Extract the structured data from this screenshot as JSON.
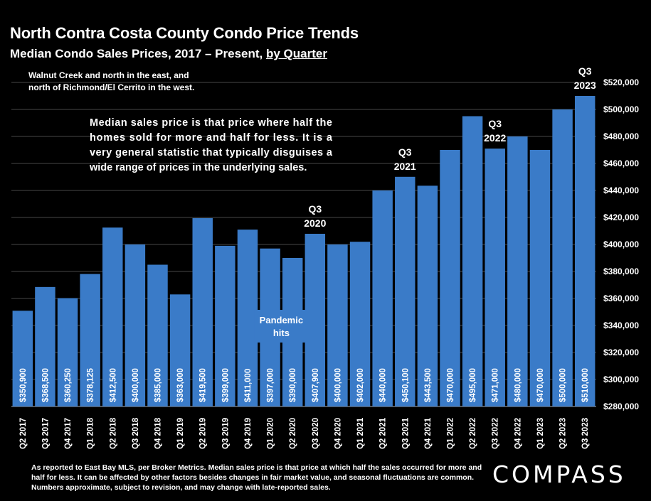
{
  "header": {
    "title": "North Contra Costa County Condo Price Trends",
    "subtitle_prefix": "Median Condo Sales Prices, 2017 – Present, ",
    "subtitle_emphasis": "by Quarter"
  },
  "footer": {
    "note": "As reported to East Bay MLS, per Broker Metrics. Median sales price is that price at which half the sales occurred for more and half for less. It can be affected by other factors besides changes in fair market value, and seasonal fluctuations are common. Numbers approximate, subject to revision, and may change with late-reported sales.",
    "logo": "COMPASS"
  },
  "colors": {
    "background": "#000000",
    "bar": "#3a7bc8",
    "text": "#ffffff",
    "grid": "#ffffff"
  },
  "chart_data": {
    "type": "bar",
    "categories": [
      "Q2 2017",
      "Q3 2017",
      "Q4 2017",
      "Q1 2018",
      "Q2 2018",
      "Q3 2018",
      "Q4 2018",
      "Q1 2019",
      "Q2 2019",
      "Q3 2019",
      "Q4 2019",
      "Q1 2020",
      "Q2 2020",
      "Q3 2020",
      "Q4 2020",
      "Q1 2021",
      "Q2 2021",
      "Q3 2021",
      "Q4 2021",
      "Q1 2022",
      "Q2 2022",
      "Q3 2022",
      "Q4 2022",
      "Q1 2023",
      "Q2 2023",
      "Q3 2023"
    ],
    "values": [
      350900,
      368500,
      360250,
      378125,
      412500,
      400000,
      385000,
      363000,
      419500,
      399000,
      411000,
      397000,
      390000,
      407900,
      400000,
      402000,
      440000,
      450100,
      443500,
      470000,
      495000,
      471000,
      480000,
      470000,
      500000,
      510000
    ],
    "value_labels": [
      "$350,900",
      "$368,500",
      "$360,250",
      "$378,125",
      "$412,500",
      "$400,000",
      "$385,000",
      "$363,000",
      "$419,500",
      "$399,000",
      "$411,000",
      "$397,000",
      "$390,000",
      "$407,900",
      "$400,000",
      "$402,000",
      "$440,000",
      "$450,100",
      "$443,500",
      "$470,000",
      "$495,000",
      "$471,000",
      "$480,000",
      "$470,000",
      "$500,000",
      "$510,000"
    ],
    "ylim": [
      280000,
      520000
    ],
    "y_ticks": [
      280000,
      300000,
      320000,
      340000,
      360000,
      380000,
      400000,
      420000,
      440000,
      460000,
      480000,
      500000,
      520000
    ],
    "y_tick_labels": [
      "$280,000",
      "$300,000",
      "$320,000",
      "$340,000",
      "$360,000",
      "$380,000",
      "$400,000",
      "$420,000",
      "$440,000",
      "$460,000",
      "$480,000",
      "$500,000",
      "$520,000"
    ],
    "y_axis_side": "right",
    "grid": true,
    "annotations": {
      "region_note": {
        "lines": [
          "Walnut Creek and north in the east, and",
          "north of Richmond/El Cerrito in the west."
        ]
      },
      "definition": {
        "lines": [
          "Median sales price is that price where half the",
          "homes sold for more and half for less. It is a",
          "very general statistic that typically disguises a",
          "wide range of prices in the underlying sales."
        ]
      },
      "pandemic": {
        "lines": [
          "Pandemic",
          "hits"
        ]
      },
      "q3_markers": [
        {
          "category": "Q3 2020",
          "lines": [
            "Q3",
            "2020"
          ]
        },
        {
          "category": "Q3 2021",
          "lines": [
            "Q3",
            "2021"
          ]
        },
        {
          "category": "Q3 2022",
          "lines": [
            "Q3",
            "2022"
          ]
        },
        {
          "category": "Q3 2023",
          "lines": [
            "Q3",
            "2023"
          ]
        }
      ]
    }
  }
}
